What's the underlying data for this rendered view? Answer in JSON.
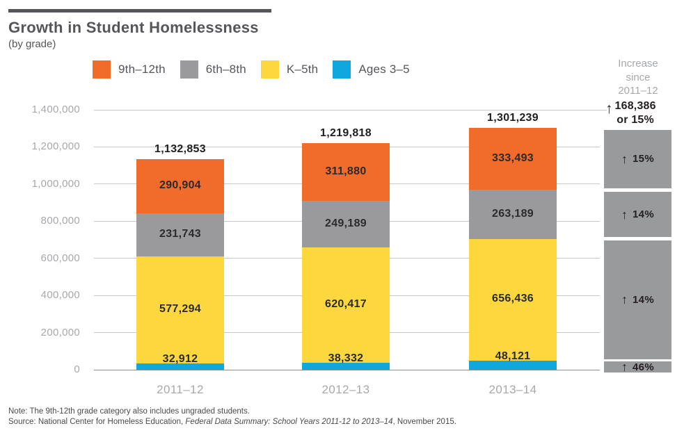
{
  "header": {
    "title": "Growth in Student Homelessness",
    "subtitle": "(by grade)"
  },
  "legend": {
    "items": [
      {
        "label": "9th–12th",
        "color": "#f16c2b"
      },
      {
        "label": "6th–8th",
        "color": "#9a9a9c"
      },
      {
        "label": "K–5th",
        "color": "#fcd83e"
      },
      {
        "label": "Ages 3–5",
        "color": "#10a7df"
      }
    ]
  },
  "increase_column": {
    "header": "Increase\nsince\n2011–12",
    "annotation": {
      "arrow": "↑",
      "value": "168,386",
      "suffix": "or 15%"
    },
    "box_color": "#999a9c",
    "boxes": [
      {
        "series": "9th–12th",
        "arrow": "↑",
        "label": "15%"
      },
      {
        "series": "6th–8th",
        "arrow": "↑",
        "label": "14%"
      },
      {
        "series": "K–5th",
        "arrow": "↑",
        "label": "14%"
      },
      {
        "series": "Ages 3–5",
        "arrow": "↑",
        "label": "46%"
      }
    ]
  },
  "chart_data": {
    "type": "bar",
    "stacked": true,
    "title": "Growth in Student Homelessness",
    "subtitle": "(by grade)",
    "categories": [
      "2011–12",
      "2012–13",
      "2013–14"
    ],
    "series": [
      {
        "name": "Ages 3–5",
        "color": "#10a7df",
        "values": [
          32912,
          38332,
          48121
        ]
      },
      {
        "name": "K–5th",
        "color": "#fcd83e",
        "values": [
          577294,
          620417,
          656436
        ]
      },
      {
        "name": "6th–8th",
        "color": "#9a9a9c",
        "values": [
          231743,
          249189,
          263189
        ]
      },
      {
        "name": "9th–12th",
        "color": "#f16c2b",
        "values": [
          290904,
          311880,
          333493
        ]
      }
    ],
    "totals": [
      1132853,
      1219818,
      1301239
    ],
    "increase_since_2011_12": {
      "total": 168386,
      "total_pct": "15%",
      "by_series_top_to_bottom": [
        "15%",
        "14%",
        "14%",
        "46%"
      ]
    },
    "ylim": [
      0,
      1400000
    ],
    "ytick_step": 200000,
    "grid": true,
    "legend_position": "top",
    "xlabel": "",
    "ylabel": ""
  },
  "notes": {
    "note": "Note: The 9th-12th grade category also includes ungraded students.",
    "source_prefix": "Source: National Center for Homeless Education, ",
    "source_italic": "Federal Data Summary: School Years 2011-12 to 2013–14",
    "source_suffix": ", November 2015."
  }
}
